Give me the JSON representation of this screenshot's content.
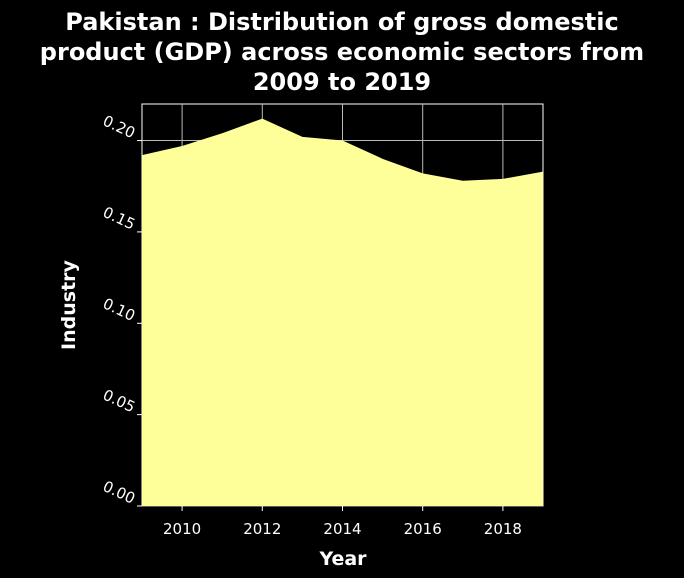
{
  "chart_data": {
    "type": "area",
    "title_lines": [
      "Pakistan : Distribution of gross domestic",
      "product (GDP) across economic sectors from",
      "2009 to 2019"
    ],
    "xlabel": "Year",
    "ylabel": "Industry",
    "x": [
      2009,
      2010,
      2011,
      2012,
      2013,
      2014,
      2015,
      2016,
      2017,
      2018,
      2019
    ],
    "series": [
      {
        "values": [
          0.192,
          0.197,
          0.204,
          0.212,
          0.202,
          0.2,
          0.19,
          0.182,
          0.178,
          0.179,
          0.183
        ]
      }
    ],
    "xlim": [
      2009,
      2019
    ],
    "ylim": [
      0,
      0.22
    ],
    "x_ticks": [
      2010,
      2012,
      2014,
      2016,
      2018
    ],
    "x_tick_labels": [
      "2010",
      "2012",
      "2014",
      "2016",
      "2018"
    ],
    "y_ticks": [
      0,
      0.05,
      0.1,
      0.15,
      0.2
    ],
    "y_tick_labels": [
      "0.00",
      "0.05",
      "0.10",
      "0.15",
      "0.20"
    ],
    "grid": true,
    "colors": {
      "background": "#000000",
      "fill": "#ffff99",
      "grid": "#bbbbbb",
      "text": "#ffffff"
    }
  }
}
